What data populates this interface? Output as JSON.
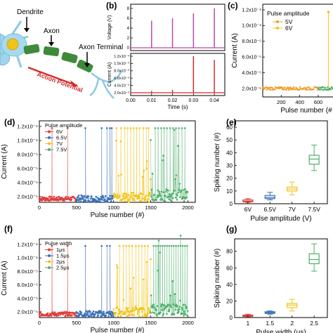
{
  "panels": {
    "a": {
      "labels": [
        "Dendrite",
        "Axon",
        "Axon Terminal",
        "Action Potential"
      ]
    },
    "b": {
      "letter": "(b)",
      "voltage_ylabel": "Voltage (V)",
      "voltage_ticks": [
        "8",
        "6",
        "4",
        "2",
        "0"
      ],
      "current_ylabel": "Current (A)",
      "current_ticks": [
        "1.2x10⁻⁴",
        "1.0x10⁻⁴",
        "8.0x10⁻⁵",
        "6.0x10⁻⁵",
        "4.0x10⁻⁵",
        "2.0x10⁻⁵"
      ],
      "xlabel": "Time (s)",
      "x_ticks": [
        "0.00",
        "0.01",
        "0.02",
        "0.03",
        "0.04"
      ]
    },
    "c": {
      "letter": "(c)",
      "ylabel": "Current (A)",
      "xlabel": "Pulse number (#",
      "y_ticks": [
        "1.2x10⁻⁴",
        "1.0x10⁻⁴",
        "8.0x10⁻⁵",
        "6.0x10⁻⁵",
        "4.0x10⁻⁵",
        "2.0x10⁻⁵"
      ],
      "x_ticks": [
        "200",
        "400",
        "600"
      ],
      "legend_title": "Pulse amplitude",
      "legend": [
        "5V",
        "6V"
      ]
    },
    "d": {
      "letter": "(d)",
      "ylabel": "Current (A)",
      "xlabel": "Pulse number (#)",
      "legend_title": "Pulse amplitude",
      "legend": [
        "6V",
        "6.5V",
        "7V",
        "7.5V"
      ]
    },
    "e": {
      "letter": "(e)",
      "ylabel": "Spiking number (#)",
      "xlabel": "Pulse amplitude (V)",
      "y_ticks": [
        "60",
        "50",
        "40",
        "30",
        "20",
        "10",
        "0"
      ],
      "categories": [
        "6V",
        "6.5V",
        "7V",
        "7.5V"
      ]
    },
    "f": {
      "letter": "(f)",
      "ylabel": "Current (A)",
      "xlabel": "Pulse number (#)",
      "legend_title": "Pulse width",
      "legend": [
        "1μs",
        "1.5μs",
        "2μs",
        "2.5μs"
      ]
    },
    "g": {
      "letter": "(g)",
      "ylabel": "Spiking number (#)",
      "xlabel": "Pulse width (μs)",
      "y_ticks": [
        "80",
        "60",
        "40",
        "20",
        "0"
      ],
      "categories": [
        "1",
        "1.5",
        "2",
        "2.5"
      ]
    }
  },
  "shared": {
    "current_ticks": [
      "1.2x10⁻⁴",
      "1.0x10⁻⁴",
      "8.0x10⁻⁵",
      "6.0x10⁻⁵",
      "4.0x10⁻⁵",
      "2.0x10⁻⁵"
    ],
    "pulse_ticks": [
      "0",
      "500",
      "1000",
      "1500",
      "2000"
    ]
  },
  "colors": {
    "red": "#e23b3b",
    "blue": "#3a6fb5",
    "yellow": "#f2c318",
    "green": "#4caf6a",
    "orange": "#f0a030",
    "voltage": "#b84aa8",
    "current_b": "#d42a2a"
  },
  "chart_data": [
    {
      "panel": "b",
      "type": "line",
      "series": [
        {
          "axis": "Voltage (V)",
          "x": [
            0.01,
            0.02,
            0.03,
            0.04
          ],
          "values": [
            5.5,
            6.0,
            7.0,
            8.0
          ]
        },
        {
          "axis": "Current (A)",
          "x": [
            0.01,
            0.02,
            0.03,
            0.04
          ],
          "values": [
            2.5e-05,
            2.8e-05,
            0.00012,
            0.00011
          ]
        }
      ],
      "xlim": [
        0,
        0.045
      ]
    },
    {
      "panel": "c",
      "type": "scatter",
      "series": [
        {
          "name": "5V",
          "x_range": [
            0,
            600
          ],
          "baseline": 2.1e-05
        },
        {
          "name": "6V",
          "x_range": [
            600,
            760
          ],
          "baseline": 2.1e-05,
          "spike_x": 710,
          "spike_y": 0.00012
        }
      ],
      "ylim": [
        1e-05,
        0.00013
      ]
    },
    {
      "panel": "d",
      "type": "scatter",
      "xlim": [
        0,
        2100
      ],
      "ylim": [
        1.6e-05,
        0.000128
      ],
      "series": [
        {
          "name": "6V",
          "x_range": [
            0,
            500
          ],
          "baseline": 2.1e-05,
          "spikes_x": [
            170,
            380
          ]
        },
        {
          "name": "6.5V",
          "x_range": [
            500,
            1000
          ],
          "baseline": 2.1e-05,
          "spikes_x": [
            620,
            840,
            910,
            950,
            975
          ]
        },
        {
          "name": "7V",
          "x_range": [
            1000,
            1500
          ],
          "baseline": 2.3e-05,
          "spikes_x": [
            1040,
            1100,
            1150,
            1190,
            1230,
            1270,
            1310,
            1350,
            1400,
            1440,
            1470
          ]
        },
        {
          "name": "7.5V",
          "x_range": [
            1500,
            2000
          ],
          "baseline": 2.6e-05,
          "spikes_x": [
            1560,
            1600,
            1640,
            1680,
            1720,
            1760,
            1800,
            1840,
            1880,
            1920,
            1960
          ]
        }
      ]
    },
    {
      "panel": "e",
      "type": "box",
      "categories": [
        "6V",
        "6.5V",
        "7V",
        "7.5V"
      ],
      "series": [
        {
          "min": 1,
          "q1": 1.5,
          "median": 2,
          "q3": 3,
          "max": 4
        },
        {
          "min": 3,
          "q1": 4,
          "median": 5,
          "q3": 6.5,
          "max": 9
        },
        {
          "min": 7,
          "q1": 10,
          "median": 11.5,
          "q3": 13,
          "max": 17
        },
        {
          "min": 26,
          "q1": 31,
          "median": 35,
          "q3": 38,
          "max": 46
        }
      ],
      "ylim": [
        0,
        65
      ]
    },
    {
      "panel": "f",
      "type": "scatter",
      "xlim": [
        0,
        2100
      ],
      "ylim": [
        1.6e-05,
        0.000128
      ],
      "series": [
        {
          "name": "1μs",
          "x_range": [
            0,
            500
          ],
          "baseline": 2.1e-05,
          "spikes_x": [
            170,
            380
          ]
        },
        {
          "name": "1.5μs",
          "x_range": [
            500,
            1000
          ],
          "baseline": 2.1e-05,
          "spikes_x": [
            620,
            840,
            910,
            950
          ]
        },
        {
          "name": "2μs",
          "x_range": [
            1000,
            1500
          ],
          "baseline": 2.4e-05,
          "spikes_x": [
            1080,
            1130,
            1170,
            1210,
            1250,
            1300,
            1340,
            1380,
            1420,
            1460
          ]
        },
        {
          "name": "2.5μs",
          "x_range": [
            1500,
            2000
          ],
          "baseline": 2.7e-05,
          "spikes_x": [
            1540,
            1570,
            1600,
            1630,
            1660,
            1690,
            1720,
            1750,
            1780,
            1810,
            1840,
            1870,
            1900,
            1930,
            1960,
            1990
          ]
        }
      ]
    },
    {
      "panel": "g",
      "type": "box",
      "categories": [
        "1",
        "1.5",
        "2",
        "2.5"
      ],
      "series": [
        {
          "min": 1,
          "q1": 1.5,
          "median": 2,
          "q3": 3,
          "max": 4
        },
        {
          "min": 4,
          "q1": 5,
          "median": 6,
          "q3": 7,
          "max": 8
        },
        {
          "min": 8,
          "q1": 12,
          "median": 15,
          "q3": 17,
          "max": 22
        },
        {
          "min": 56,
          "q1": 65,
          "median": 70,
          "q3": 77,
          "max": 89
        }
      ],
      "ylim": [
        0,
        95
      ]
    }
  ]
}
